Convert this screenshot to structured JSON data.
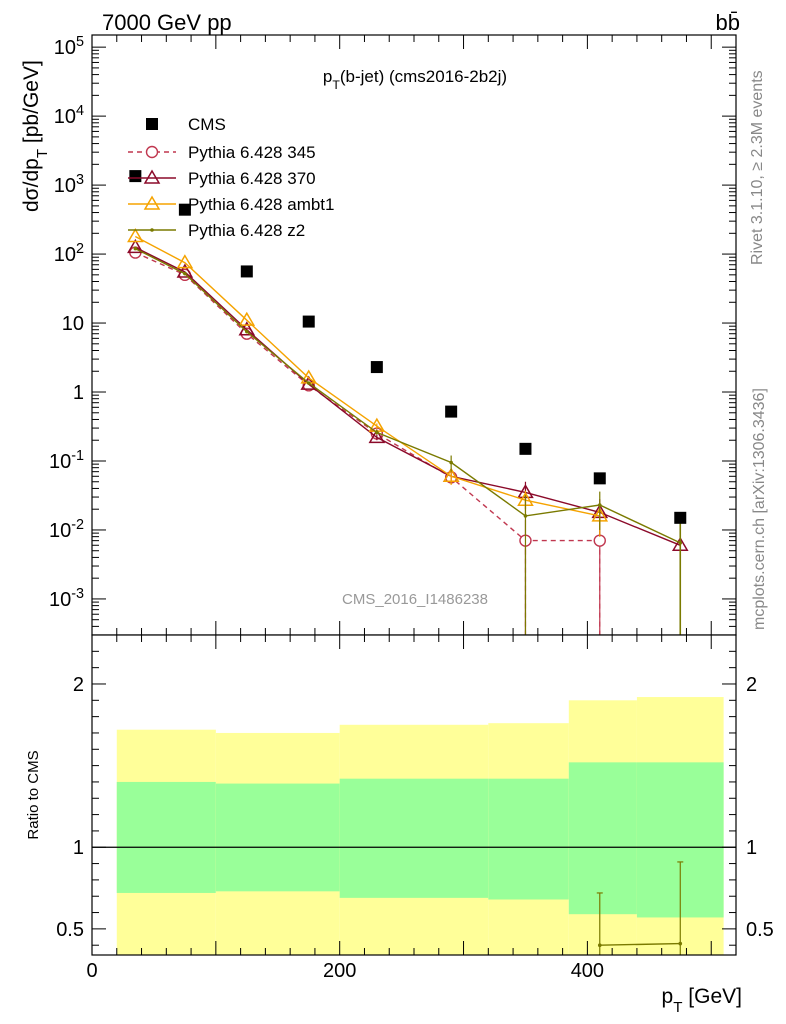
{
  "header": {
    "left_label": "7000 GeV pp",
    "right_label": "bb̄"
  },
  "side_labels": {
    "rivet": "Rivet 3.1.10, ≥ 2.3M events",
    "mcplots": "mcplots.cern.ch [arXiv:1306.3436]"
  },
  "chart_data": [
    {
      "type": "scatter",
      "title": "pT(b-jet) (cms2016-2b2j)",
      "watermark": "CMS_2016_I1486238",
      "ylabel": "dσ/dpT [pb/GeV]",
      "yscale": "log",
      "ylim": [
        0.0003,
        150000
      ],
      "xlim": [
        0,
        520
      ],
      "y_ticks": [
        "10^-3",
        "10^-2",
        "10^-1",
        "1",
        "10",
        "10^2",
        "10^3",
        "10^4",
        "10^5"
      ],
      "legend_position": "top-left",
      "series": [
        {
          "name": "CMS",
          "color": "#000000",
          "marker": "square",
          "x": [
            35,
            75,
            125,
            175,
            230,
            290,
            350,
            410,
            475
          ],
          "y": [
            1350,
            440,
            56,
            10.5,
            2.3,
            0.52,
            0.15,
            0.056,
            0.015
          ]
        },
        {
          "name": "Pythia 6.428 345",
          "color": "#c0374f",
          "marker": "circle-open",
          "dashed": true,
          "x": [
            35,
            75,
            125,
            175,
            230,
            290,
            350,
            410,
            475
          ],
          "y": [
            105,
            50,
            7.0,
            1.25,
            0.25,
            0.058,
            0.007,
            0.007,
            null
          ],
          "yerr": [
            0,
            0,
            0,
            0,
            0.02,
            0.012,
            0.0069,
            0.0069,
            0
          ]
        },
        {
          "name": "Pythia 6.428 370",
          "color": "#8b0a2a",
          "marker": "triangle-open",
          "x": [
            35,
            75,
            125,
            175,
            230,
            290,
            350,
            410,
            475
          ],
          "y": [
            125,
            55,
            8.0,
            1.3,
            0.22,
            0.06,
            0.035,
            0.018,
            0.006
          ],
          "yerr": [
            0,
            0,
            0,
            0,
            0.02,
            0.012,
            0.015,
            0.01,
            0.005
          ]
        },
        {
          "name": "Pythia 6.428 ambt1",
          "color": "#f5a300",
          "marker": "triangle-open",
          "x": [
            35,
            75,
            125,
            175,
            230,
            290,
            350,
            410,
            475
          ],
          "y": [
            180,
            75,
            11,
            1.6,
            0.32,
            0.06,
            0.027,
            0.016,
            null
          ],
          "yerr": [
            0,
            0,
            0,
            0,
            0.03,
            0.015,
            0.01,
            0.008,
            0
          ]
        },
        {
          "name": "Pythia 6.428 z2",
          "color": "#7a7a00",
          "marker": "dot",
          "x": [
            35,
            75,
            125,
            175,
            230,
            290,
            350,
            410,
            475
          ],
          "y": [
            120,
            52,
            7.5,
            1.35,
            0.26,
            0.095,
            0.016,
            0.023,
            0.0065
          ],
          "yerr": [
            0,
            0,
            0,
            0,
            0.02,
            0.025,
            0.0159,
            0.013,
            0.0064
          ]
        }
      ]
    },
    {
      "type": "area",
      "ylabel": "Ratio to CMS",
      "xlabel": "pT [GeV]",
      "xlim": [
        0,
        520
      ],
      "ylim": [
        0.34,
        2.3
      ],
      "x_ticks": [
        "0",
        "200",
        "400"
      ],
      "y_ticks": [
        "0.5",
        "1",
        "2"
      ],
      "reference_line": 1,
      "bands": {
        "bins": [
          [
            20,
            100
          ],
          [
            100,
            200
          ],
          [
            200,
            320
          ],
          [
            320,
            385
          ],
          [
            385,
            440
          ],
          [
            440,
            510
          ]
        ],
        "outer_low": [
          0.72,
          0.73,
          0.69,
          0.68,
          0.59,
          0.57,
          0.56
        ],
        "outer_high": [
          1.72,
          1.7,
          1.75,
          1.76,
          1.9,
          1.92,
          1.94
        ],
        "inner_low": [
          0.72,
          0.73,
          0.69,
          0.68,
          0.59,
          0.57,
          0.56
        ],
        "inner_high": [
          1.4,
          1.39,
          1.42,
          1.42,
          1.52,
          1.52,
          1.53
        ],
        "outer_color": "#ffff99",
        "inner_color": "#99ff99"
      },
      "series": [
        {
          "name": "Pythia 6.428 z2",
          "color": "#7a7a00",
          "x": [
            410,
            475
          ],
          "y": [
            0.4,
            0.41
          ],
          "yerr_high": [
            0.72,
            0.91
          ]
        }
      ]
    }
  ]
}
